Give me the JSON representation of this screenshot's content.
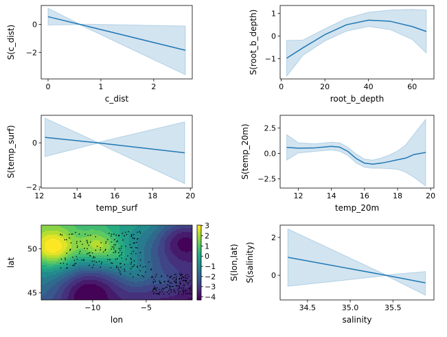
{
  "colors": {
    "line": "#1f77b4",
    "band": "#1f77b4",
    "points": "#000000",
    "colormap": [
      "#440154",
      "#472c7a",
      "#3b518b",
      "#2c718e",
      "#21908d",
      "#27ad81",
      "#5cc863",
      "#aadc32",
      "#fde725"
    ]
  },
  "chart_data": [
    {
      "id": "c_dist",
      "type": "line",
      "xlabel": "c_dist",
      "ylabel": "S(c_dist)",
      "xlim": [
        -0.13,
        2.73
      ],
      "ylim": [
        -3.9,
        1.35
      ],
      "xticks": [
        0,
        1,
        2
      ],
      "xtick_labels": [
        "0",
        "1",
        "2"
      ],
      "yticks": [
        0,
        -2
      ],
      "ytick_labels": [
        "0",
        "−2"
      ],
      "x": [
        0.0,
        0.6,
        2.6
      ],
      "y": [
        0.55,
        0.0,
        -1.85
      ],
      "band_upper": [
        1.15,
        0.02,
        -0.12
      ],
      "band_lower": [
        -0.05,
        -0.02,
        -3.6
      ]
    },
    {
      "id": "root_b_depth",
      "type": "line",
      "xlabel": "root_b_depth",
      "ylabel": "S(root_b_depth)",
      "xlim": [
        -0.5,
        70
      ],
      "ylim": [
        -1.9,
        1.35
      ],
      "xticks": [
        0,
        20,
        40,
        60
      ],
      "xtick_labels": [
        "0",
        "20",
        "40",
        "60"
      ],
      "yticks": [
        1,
        0,
        -1
      ],
      "ytick_labels": [
        "1",
        "0",
        "−1"
      ],
      "x": [
        2.5,
        10,
        20,
        30,
        40,
        50,
        60,
        66.5
      ],
      "y": [
        -0.98,
        -0.52,
        0.06,
        0.5,
        0.7,
        0.65,
        0.42,
        0.2
      ],
      "band_upper": [
        -0.2,
        -0.18,
        0.32,
        0.78,
        1.05,
        1.15,
        1.18,
        1.15
      ],
      "band_lower": [
        -1.78,
        -0.85,
        -0.22,
        0.22,
        0.42,
        0.28,
        -0.15,
        -0.75
      ]
    },
    {
      "id": "temp_surf",
      "type": "line",
      "xlabel": "temp_surf",
      "ylabel": "S(temp_surf)",
      "xlim": [
        12.1,
        20.1
      ],
      "ylim": [
        -2.05,
        1.25
      ],
      "xticks": [
        12,
        14,
        16,
        18,
        20
      ],
      "xtick_labels": [
        "12",
        "14",
        "16",
        "18",
        "20"
      ],
      "yticks": [
        0,
        -2
      ],
      "ytick_labels": [
        "0",
        "−2"
      ],
      "x": [
        12.3,
        15.1,
        19.7
      ],
      "y": [
        0.25,
        0.0,
        -0.45
      ],
      "band_upper": [
        1.12,
        0.02,
        0.95
      ],
      "band_lower": [
        -0.62,
        -0.02,
        -1.85
      ]
    },
    {
      "id": "temp_20m",
      "type": "line",
      "xlabel": "temp_20m",
      "ylabel": "S(temp_20m)",
      "xlim": [
        10.9,
        20.2
      ],
      "ylim": [
        -3.4,
        3.75
      ],
      "xticks": [
        12,
        14,
        16,
        18,
        20
      ],
      "xtick_labels": [
        "12",
        "14",
        "16",
        "18",
        "20"
      ],
      "yticks": [
        2.5,
        0.0,
        -2.5
      ],
      "ytick_labels": [
        "2.5",
        "0.0",
        "−2.5"
      ],
      "x": [
        11.3,
        12,
        13,
        14,
        14.5,
        15,
        15.5,
        16,
        16.5,
        17,
        17.5,
        18,
        18.5,
        19,
        19.7
      ],
      "y": [
        0.6,
        0.52,
        0.55,
        0.7,
        0.62,
        0.2,
        -0.5,
        -0.95,
        -1.05,
        -0.95,
        -0.8,
        -0.62,
        -0.45,
        -0.1,
        0.1
      ],
      "band_upper": [
        1.85,
        1.05,
        0.95,
        1.1,
        1.05,
        0.6,
        -0.05,
        -0.55,
        -0.65,
        -0.45,
        -0.15,
        0.25,
        0.85,
        1.9,
        3.35
      ],
      "band_lower": [
        -0.65,
        0.05,
        0.2,
        0.35,
        0.22,
        -0.2,
        -0.95,
        -1.35,
        -1.45,
        -1.45,
        -1.5,
        -1.55,
        -1.85,
        -2.35,
        -3.2
      ]
    },
    {
      "id": "lon_lat",
      "type": "heatmap",
      "xlabel": "lon",
      "ylabel": "lat",
      "colorbar_label": "S(lon,lat)",
      "xlim": [
        -14.8,
        -0.7
      ],
      "ylim": [
        44.2,
        52.7
      ],
      "xticks": [
        -10,
        -5
      ],
      "xtick_labels": [
        "−10",
        "−5"
      ],
      "yticks": [
        50,
        45
      ],
      "ytick_labels": [
        "50",
        "45"
      ],
      "clim": [
        -4.3,
        3.05
      ],
      "colorbar_ticks": [
        3,
        2,
        1,
        0,
        -1,
        -2,
        -3,
        -4
      ],
      "colorbar_tick_labels": [
        "3",
        "2",
        "1",
        "0",
        "−1",
        "−2",
        "−3",
        "−4"
      ],
      "levels": [
        -4,
        -3.5,
        -3,
        -2.5,
        -2,
        -1.5,
        -1,
        -0.5,
        0,
        0.5,
        1,
        1.5,
        2,
        2.5,
        3
      ],
      "features": [
        {
          "lon": -13.6,
          "lat": 50.1,
          "amp": 3.5,
          "width": 1.5
        },
        {
          "lon": -9.5,
          "lat": 50.3,
          "amp": 2.6,
          "width": 1.3
        },
        {
          "lon": -7.5,
          "lat": 49.0,
          "amp": 1.2,
          "width": 1.2
        },
        {
          "lon": -5.8,
          "lat": 47.2,
          "amp": 1.0,
          "width": 1.1
        },
        {
          "lon": -3.0,
          "lat": 46.0,
          "amp": 0.6,
          "width": 1.0
        },
        {
          "lon": -10.5,
          "lat": 45.2,
          "amp": -2.2,
          "width": 1.8
        },
        {
          "lon": -1.5,
          "lat": 51.0,
          "amp": -2.5,
          "width": 1.8
        }
      ],
      "base_field": {
        "intercept": -1.6,
        "lat_coef": 0.35,
        "lat_ref": 48.5,
        "lon_coef": -0.15,
        "lon_ref": -7.5
      },
      "point_clusters": [
        {
          "lon_range": [
            -13.0,
            -5.5
          ],
          "lat_range": [
            47.8,
            52.0
          ],
          "count": 170
        },
        {
          "lon_range": [
            -4.5,
            -0.8
          ],
          "lat_range": [
            44.8,
            47.2
          ],
          "count": 150
        },
        {
          "lon_range": [
            -8.0,
            -4.5
          ],
          "lat_range": [
            46.8,
            48.5
          ],
          "count": 25
        }
      ]
    },
    {
      "id": "salinity",
      "type": "line",
      "xlabel": "salinity",
      "ylabel": "S(salinity)",
      "xlim": [
        34.18,
        35.98
      ],
      "ylim": [
        -1.3,
        2.65
      ],
      "xticks": [
        34.5,
        35.0,
        35.5
      ],
      "xtick_labels": [
        "34.5",
        "35.0",
        "35.5"
      ],
      "yticks": [
        2,
        0
      ],
      "ytick_labels": [
        "2",
        "0"
      ],
      "x": [
        34.27,
        35.42,
        35.88
      ],
      "y": [
        0.95,
        0.0,
        -0.4
      ],
      "band_upper": [
        2.45,
        0.02,
        0.2
      ],
      "band_lower": [
        -0.58,
        -0.02,
        -1.05
      ]
    }
  ]
}
